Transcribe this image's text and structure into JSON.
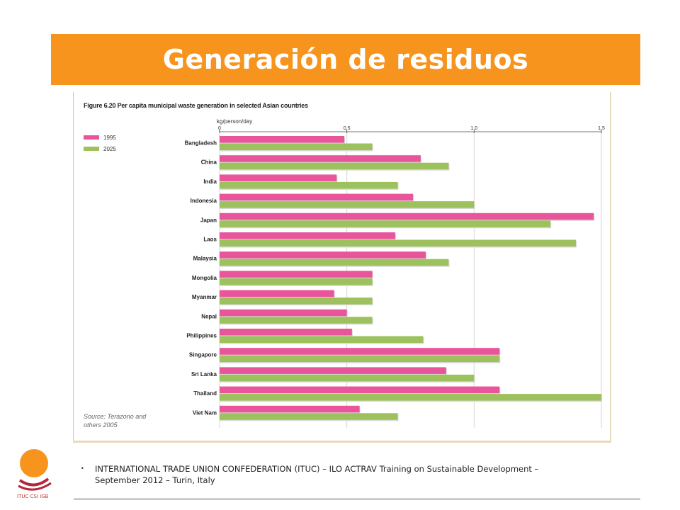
{
  "slide": {
    "title": "Generación de residuos",
    "bullet": "INTERNATIONAL TRADE UNION CONFEDERATION (ITUC) – ILO ACTRAV Training on Sustainable Development – September 2012 – Turin, Italy",
    "logo_text": "ITUC CSI IGB"
  },
  "figure": {
    "title": "Figure 6.20 Per capita municipal waste generation in selected Asian countries",
    "source": "Source: Terazono and others 2005"
  },
  "colors": {
    "series_1995": "#e8559a",
    "series_2025": "#9dc15c",
    "title_bar": "#f7941d"
  },
  "chart_data": {
    "type": "bar",
    "orientation": "horizontal",
    "title": "Figure 6.20 Per capita municipal waste generation in selected Asian countries",
    "xlabel": "kg/person/day",
    "ylabel": "",
    "xlim": [
      0,
      1.5
    ],
    "xticks": [
      "0",
      "0.5",
      "1.0",
      "1.5"
    ],
    "categories": [
      "Bangladesh",
      "China",
      "India",
      "Indonesia",
      "Japan",
      "Laos",
      "Malaysia",
      "Mongolia",
      "Myanmar",
      "Nepal",
      "Philippines",
      "Singapore",
      "Sri Lanka",
      "Thailand",
      "Viet Nam"
    ],
    "series": [
      {
        "name": "1995",
        "values": [
          0.49,
          0.79,
          0.46,
          0.76,
          1.47,
          0.69,
          0.81,
          0.6,
          0.45,
          0.5,
          0.52,
          1.1,
          0.89,
          1.1,
          0.55
        ]
      },
      {
        "name": "2025",
        "values": [
          0.6,
          0.9,
          0.7,
          1.0,
          1.3,
          1.4,
          0.9,
          0.6,
          0.6,
          0.6,
          0.8,
          1.1,
          1.0,
          1.5,
          0.7
        ]
      }
    ],
    "legend_position": "top-left",
    "grid": true
  }
}
